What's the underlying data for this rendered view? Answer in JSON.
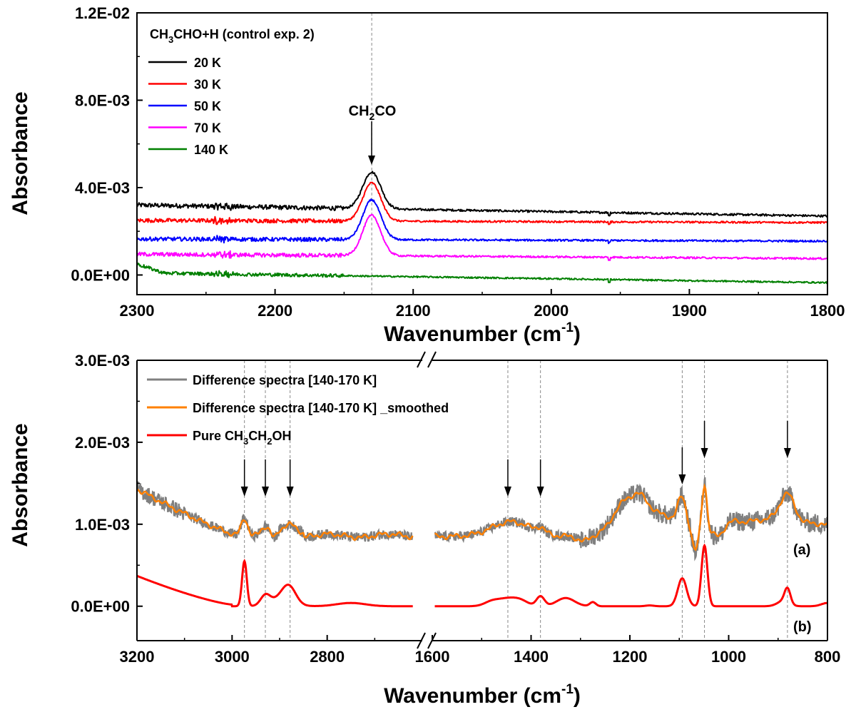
{
  "chart_data": [
    {
      "type": "line",
      "panel": "top",
      "xlabel": "Wavenumber (cm",
      "xlabel_sup": "-1",
      "xlabel_close": ")",
      "ylabel": "Absorbance",
      "xlim": [
        2300,
        1800
      ],
      "ylim": [
        -0.0009,
        0.012
      ],
      "xticks": [
        2300,
        2200,
        2100,
        2000,
        1900,
        1800
      ],
      "yticks": [
        0.0,
        0.004,
        0.008,
        0.012
      ],
      "ytick_labels": [
        "0.0E+00",
        "4.0E-03",
        "8.0E-03",
        "1.2E-02"
      ],
      "legend": {
        "position": "top-left",
        "title_parts": [
          "CH",
          "3",
          "CHO+H (control exp. 2)"
        ]
      },
      "annotation": {
        "label_parts": [
          "CH",
          "2",
          "CO"
        ],
        "x": 2130
      },
      "series": [
        {
          "name": "20 K",
          "color": "#000000",
          "baseline": 0.0032,
          "end": 0.0027,
          "peak": 0.00168,
          "noise": 8e-05
        },
        {
          "name": "30 K",
          "color": "#ff0000",
          "baseline": 0.0025,
          "end": 0.0024,
          "peak": 0.00175,
          "noise": 7e-05
        },
        {
          "name": "50 K",
          "color": "#0000ff",
          "baseline": 0.00165,
          "end": 0.00155,
          "peak": 0.00182,
          "noise": 7e-05
        },
        {
          "name": "70 K",
          "color": "#ff00ff",
          "baseline": 0.00095,
          "end": 0.00075,
          "peak": 0.00185,
          "noise": 7e-05
        },
        {
          "name": "140 K",
          "color": "#008000",
          "baseline": 0.0001,
          "end": -0.00035,
          "peak": 0.0,
          "noise": 6e-05
        }
      ]
    },
    {
      "type": "line",
      "panel": "bottom",
      "xlabel": "Wavenumber (cm",
      "xlabel_sup": "-1",
      "xlabel_close": ")",
      "ylabel": "Absorbance",
      "x_break": "2600-1600",
      "segments": [
        {
          "xlim": [
            3200,
            2600
          ],
          "xticks": [
            3200,
            3000,
            2800
          ]
        },
        {
          "xlim": [
            1600,
            800
          ],
          "xticks": [
            1600,
            1400,
            1200,
            1000,
            800
          ]
        }
      ],
      "ylim": [
        -0.00042,
        0.003
      ],
      "yticks": [
        0.0,
        0.001,
        0.002,
        0.003
      ],
      "ytick_labels": [
        "0.0E+00",
        "1.0E-03",
        "2.0E-03",
        "3.0E-03"
      ],
      "legend": {
        "position": "top-left"
      },
      "marked_bands": [
        2974,
        2930,
        2878,
        1447,
        1381,
        1094,
        1049,
        881
      ],
      "trace_labels": [
        "(a)",
        "(b)"
      ],
      "series": [
        {
          "name": "Difference spectra [140-170 K]",
          "color": "#808080"
        },
        {
          "name": "Difference spectra [140-170 K] _smoothed",
          "color": "#ff8000"
        },
        {
          "name_parts": [
            "Pure CH",
            "3",
            "CH",
            "2",
            "OH"
          ],
          "color": "#ff0000"
        }
      ]
    }
  ]
}
